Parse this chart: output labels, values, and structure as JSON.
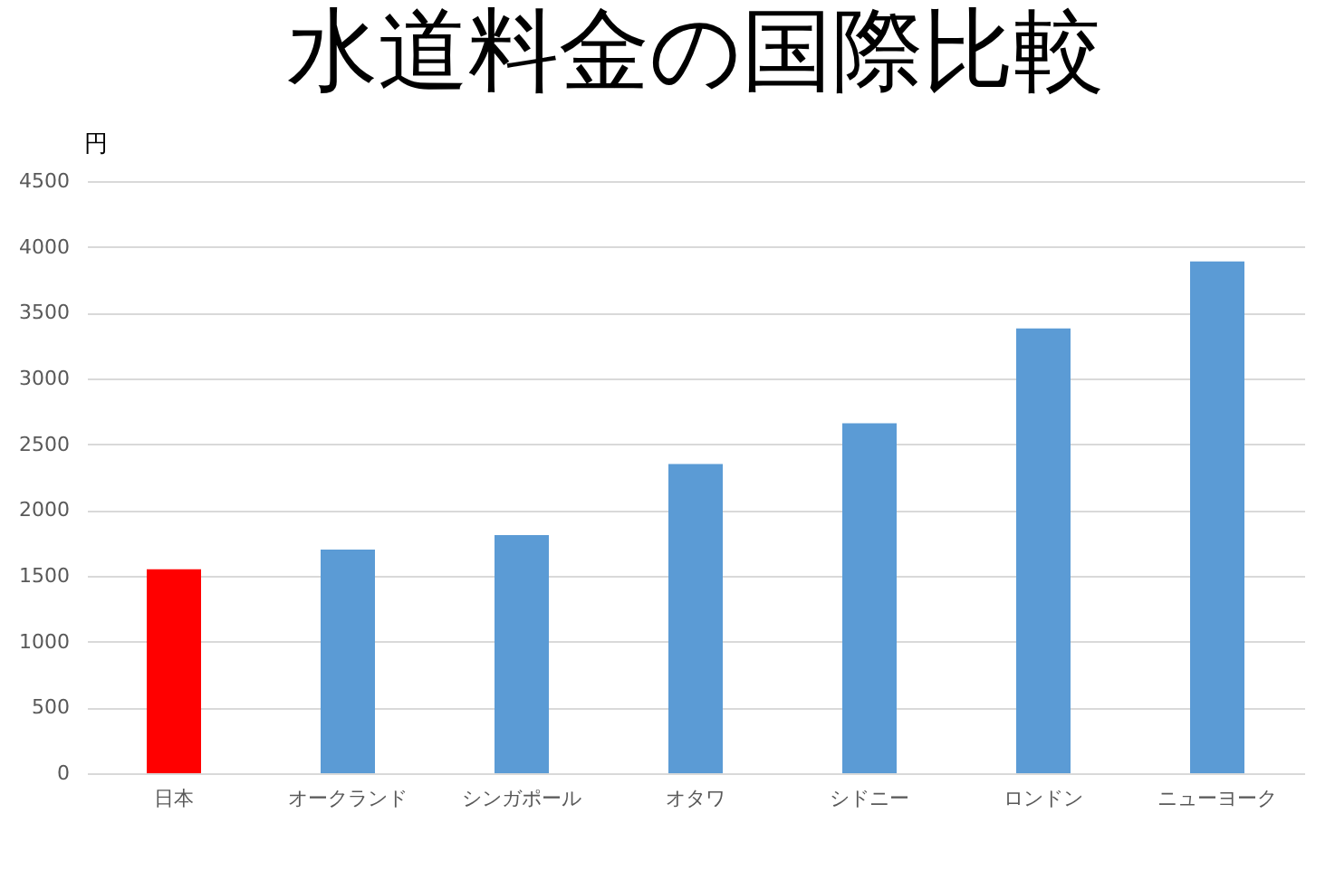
{
  "chart_data": {
    "type": "bar",
    "title": "水道料金の国際比較",
    "ylabel": "円",
    "categories": [
      "日本",
      "オークランド",
      "シンガポール",
      "オタワ",
      "シドニー",
      "ロンドン",
      "ニューヨーク"
    ],
    "values": [
      1550,
      1700,
      1810,
      2350,
      2660,
      3380,
      3890
    ],
    "colors": [
      "#ff0000",
      "#5b9bd5",
      "#5b9bd5",
      "#5b9bd5",
      "#5b9bd5",
      "#5b9bd5",
      "#5b9bd5"
    ],
    "ylim": [
      0,
      4500
    ],
    "yticks": [
      0,
      500,
      1000,
      1500,
      2000,
      2500,
      3000,
      3500,
      4000,
      4500
    ],
    "grid": "y"
  }
}
